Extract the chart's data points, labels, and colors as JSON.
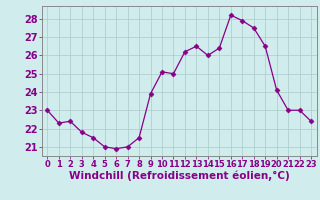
{
  "x": [
    0,
    1,
    2,
    3,
    4,
    5,
    6,
    7,
    8,
    9,
    10,
    11,
    12,
    13,
    14,
    15,
    16,
    17,
    18,
    19,
    20,
    21,
    22,
    23
  ],
  "y": [
    23.0,
    22.3,
    22.4,
    21.8,
    21.5,
    21.0,
    20.9,
    21.0,
    21.5,
    23.9,
    25.1,
    25.0,
    26.2,
    26.5,
    26.0,
    26.4,
    28.2,
    27.9,
    27.5,
    26.5,
    24.1,
    23.0,
    23.0,
    22.4
  ],
  "line_color": "#880088",
  "marker": "D",
  "marker_size": 2.5,
  "bg_color": "#d0ecec",
  "grid_color": "#aacccc",
  "xlabel": "Windchill (Refroidissement éolien,°C)",
  "ylabel_ticks": [
    21,
    22,
    23,
    24,
    25,
    26,
    27,
    28
  ],
  "xlim": [
    -0.5,
    23.5
  ],
  "ylim": [
    20.5,
    28.7
  ],
  "xlabel_fontsize": 7.5,
  "tick_fontsize": 7
}
